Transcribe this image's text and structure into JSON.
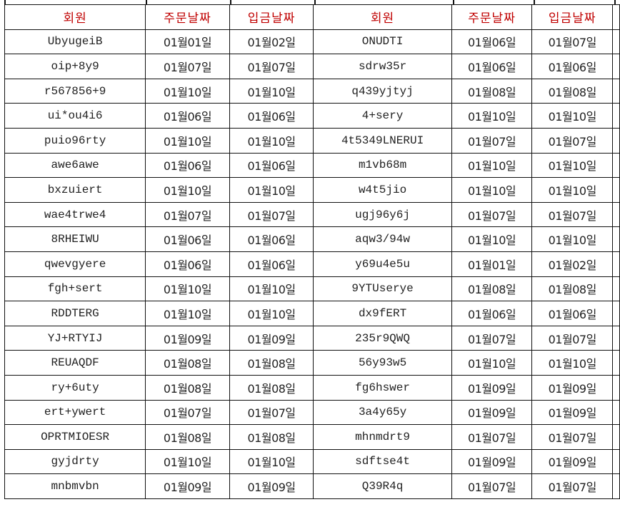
{
  "header": {
    "left": [
      "회원",
      "주문날짜",
      "입금날짜"
    ],
    "right": [
      "회원",
      "주문날짜",
      "입금날짜"
    ]
  },
  "rows": [
    {
      "l": [
        "UbyugeiB",
        "01월01일",
        "01월02일"
      ],
      "r": [
        "ONUDTI",
        "01월06일",
        "01월07일"
      ]
    },
    {
      "l": [
        "oip+8y9",
        "01월07일",
        "01월07일"
      ],
      "r": [
        "sdrw35r",
        "01월06일",
        "01월06일"
      ]
    },
    {
      "l": [
        "r567856+9",
        "01월10일",
        "01월10일"
      ],
      "r": [
        "q439yjtyj",
        "01월08일",
        "01월08일"
      ]
    },
    {
      "l": [
        "ui*ou4i6",
        "01월06일",
        "01월06일"
      ],
      "r": [
        "4+sery",
        "01월10일",
        "01월10일"
      ]
    },
    {
      "l": [
        "puio96rty",
        "01월10일",
        "01월10일"
      ],
      "r": [
        "4t5349LNERUI",
        "01월07일",
        "01월07일"
      ]
    },
    {
      "l": [
        "awe6awe",
        "01월06일",
        "01월06일"
      ],
      "r": [
        "m1vb68m",
        "01월10일",
        "01월10일"
      ]
    },
    {
      "l": [
        "bxzuiert",
        "01월10일",
        "01월10일"
      ],
      "r": [
        "w4t5jio",
        "01월10일",
        "01월10일"
      ]
    },
    {
      "l": [
        "wae4trwe4",
        "01월07일",
        "01월07일"
      ],
      "r": [
        "ugj96y6j",
        "01월07일",
        "01월07일"
      ]
    },
    {
      "l": [
        "8RHEIWU",
        "01월06일",
        "01월06일"
      ],
      "r": [
        "aqw3/94w",
        "01월10일",
        "01월10일"
      ]
    },
    {
      "l": [
        "qwevgyere",
        "01월06일",
        "01월06일"
      ],
      "r": [
        "y69u4e5u",
        "01월01일",
        "01월02일"
      ]
    },
    {
      "l": [
        "fgh+sert",
        "01월10일",
        "01월10일"
      ],
      "r": [
        "9YTUserye",
        "01월08일",
        "01월08일"
      ]
    },
    {
      "l": [
        "RDDTERG",
        "01월10일",
        "01월10일"
      ],
      "r": [
        "dx9fERT",
        "01월06일",
        "01월06일"
      ]
    },
    {
      "l": [
        "YJ+RTYIJ",
        "01월09일",
        "01월09일"
      ],
      "r": [
        "235r9QWQ",
        "01월07일",
        "01월07일"
      ]
    },
    {
      "l": [
        "REUAQDF",
        "01월08일",
        "01월08일"
      ],
      "r": [
        "56y93w5",
        "01월10일",
        "01월10일"
      ]
    },
    {
      "l": [
        "ry+6uty",
        "01월08일",
        "01월08일"
      ],
      "r": [
        "fg6hswer",
        "01월09일",
        "01월09일"
      ]
    },
    {
      "l": [
        "ert+ywert",
        "01월07일",
        "01월07일"
      ],
      "r": [
        "3a4y65y",
        "01월09일",
        "01월09일"
      ]
    },
    {
      "l": [
        "OPRTMIOESR",
        "01월08일",
        "01월08일"
      ],
      "r": [
        "mhnmdrt9",
        "01월07일",
        "01월07일"
      ]
    },
    {
      "l": [
        "gyjdrty",
        "01월10일",
        "01월10일"
      ],
      "r": [
        "sdftse4t",
        "01월09일",
        "01월09일"
      ]
    },
    {
      "l": [
        "mnbmvbn",
        "01월09일",
        "01월09일"
      ],
      "r": [
        "Q39R4q",
        "01월07일",
        "01월07일"
      ]
    }
  ],
  "colors": {
    "header_text": "#c00000",
    "grid": "#111111"
  }
}
